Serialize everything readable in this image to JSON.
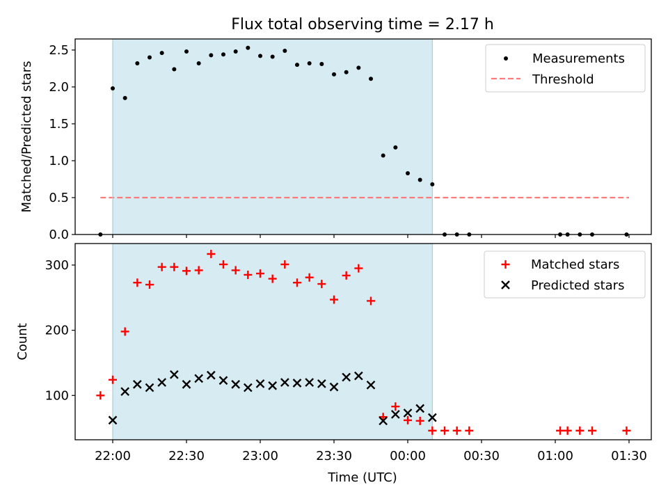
{
  "figure": {
    "title": "Flux total observing time = 2.17 h",
    "xlabel": "Time (UTC)",
    "x_ticks": [
      "22:00",
      "22:30",
      "23:00",
      "23:30",
      "00:00",
      "00:30",
      "01:00",
      "01:30"
    ],
    "shaded_window": [
      "22:00",
      "00:10"
    ],
    "shade_color": "#add8e6"
  },
  "chart_data": [
    {
      "type": "scatter",
      "ylabel": "Matched/Predicted stars",
      "ylim": [
        0,
        2.65
      ],
      "y_ticks": [
        "0.0",
        "0.5",
        "1.0",
        "1.5",
        "2.0",
        "2.5"
      ],
      "legend": {
        "placement": "top-right",
        "entries": [
          "Measurements",
          "Threshold"
        ]
      },
      "threshold": {
        "name": "Threshold",
        "value": 0.5,
        "x_range": [
          "21:55",
          "01:30"
        ],
        "color": "#ff7b7b",
        "style": "dashed"
      },
      "series": [
        {
          "name": "Measurements",
          "color": "#000000",
          "marker": "dot",
          "points": [
            [
              "21:55",
              0.0
            ],
            [
              "22:00",
              1.98
            ],
            [
              "22:05",
              1.85
            ],
            [
              "22:10",
              2.32
            ],
            [
              "22:15",
              2.4
            ],
            [
              "22:20",
              2.46
            ],
            [
              "22:25",
              2.24
            ],
            [
              "22:30",
              2.48
            ],
            [
              "22:35",
              2.32
            ],
            [
              "22:40",
              2.43
            ],
            [
              "22:45",
              2.44
            ],
            [
              "22:50",
              2.48
            ],
            [
              "22:55",
              2.53
            ],
            [
              "23:00",
              2.42
            ],
            [
              "23:05",
              2.41
            ],
            [
              "23:10",
              2.49
            ],
            [
              "23:15",
              2.3
            ],
            [
              "23:20",
              2.32
            ],
            [
              "23:25",
              2.31
            ],
            [
              "23:30",
              2.17
            ],
            [
              "23:35",
              2.2
            ],
            [
              "23:40",
              2.26
            ],
            [
              "23:45",
              2.11
            ],
            [
              "23:50",
              1.07
            ],
            [
              "23:55",
              1.18
            ],
            [
              "00:00",
              0.83
            ],
            [
              "00:05",
              0.74
            ],
            [
              "00:10",
              0.68
            ],
            [
              "00:15",
              0.0
            ],
            [
              "00:20",
              0.0
            ],
            [
              "00:25",
              0.0
            ],
            [
              "01:02",
              0.0
            ],
            [
              "01:05",
              0.0
            ],
            [
              "01:10",
              0.0
            ],
            [
              "01:15",
              0.0
            ],
            [
              "01:29",
              0.0
            ]
          ]
        }
      ]
    },
    {
      "type": "scatter",
      "ylabel": "Count",
      "ylim": [
        32,
        333
      ],
      "y_ticks": [
        "100",
        "200",
        "300"
      ],
      "legend": {
        "placement": "top-right",
        "entries": [
          "Matched stars",
          "Predicted stars"
        ]
      },
      "series": [
        {
          "name": "Matched stars",
          "color": "#ff0000",
          "marker": "plus",
          "points": [
            [
              "21:55",
              100
            ],
            [
              "22:00",
              124
            ],
            [
              "22:05",
              198
            ],
            [
              "22:10",
              273
            ],
            [
              "22:15",
              270
            ],
            [
              "22:20",
              297
            ],
            [
              "22:25",
              297
            ],
            [
              "22:30",
              291
            ],
            [
              "22:35",
              292
            ],
            [
              "22:40",
              317
            ],
            [
              "22:45",
              301
            ],
            [
              "22:50",
              292
            ],
            [
              "22:55",
              285
            ],
            [
              "23:00",
              287
            ],
            [
              "23:05",
              279
            ],
            [
              "23:10",
              301
            ],
            [
              "23:15",
              273
            ],
            [
              "23:20",
              281
            ],
            [
              "23:25",
              271
            ],
            [
              "23:30",
              247
            ],
            [
              "23:35",
              284
            ],
            [
              "23:40",
              295
            ],
            [
              "23:45",
              245
            ],
            [
              "23:50",
              67
            ],
            [
              "23:55",
              83
            ],
            [
              "00:00",
              62
            ],
            [
              "00:05",
              61
            ],
            [
              "00:10",
              46
            ],
            [
              "00:15",
              46
            ],
            [
              "00:20",
              46
            ],
            [
              "00:25",
              46
            ],
            [
              "01:02",
              46
            ],
            [
              "01:05",
              46
            ],
            [
              "01:10",
              46
            ],
            [
              "01:15",
              46
            ],
            [
              "01:29",
              46
            ]
          ]
        },
        {
          "name": "Predicted stars",
          "color": "#000000",
          "marker": "x",
          "points": [
            [
              "22:00",
              62
            ],
            [
              "22:05",
              106
            ],
            [
              "22:10",
              117
            ],
            [
              "22:15",
              112
            ],
            [
              "22:20",
              120
            ],
            [
              "22:25",
              132
            ],
            [
              "22:30",
              117
            ],
            [
              "22:35",
              126
            ],
            [
              "22:40",
              131
            ],
            [
              "22:45",
              123
            ],
            [
              "22:50",
              117
            ],
            [
              "22:55",
              112
            ],
            [
              "23:00",
              118
            ],
            [
              "23:05",
              115
            ],
            [
              "23:10",
              120
            ],
            [
              "23:15",
              119
            ],
            [
              "23:20",
              120
            ],
            [
              "23:25",
              118
            ],
            [
              "23:30",
              113
            ],
            [
              "23:35",
              128
            ],
            [
              "23:40",
              130
            ],
            [
              "23:45",
              116
            ],
            [
              "23:50",
              61
            ],
            [
              "23:55",
              71
            ],
            [
              "00:00",
              73
            ],
            [
              "00:05",
              80
            ],
            [
              "00:10",
              66
            ]
          ]
        }
      ]
    }
  ]
}
